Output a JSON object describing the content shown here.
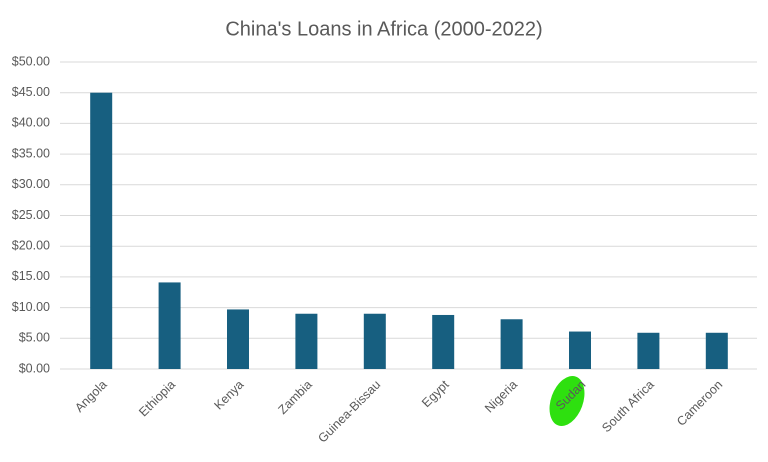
{
  "chart_data": {
    "type": "bar",
    "title": "China's Loans in Africa (2000-2022)",
    "categories": [
      "Angola",
      "Ethiopia",
      "Kenya",
      "Zambia",
      "Guinea-Bissau",
      "Egypt",
      "Nigeria",
      "Sudan",
      "South Africa",
      "Cameroon"
    ],
    "values": [
      45.0,
      14.1,
      9.7,
      9.0,
      9.0,
      8.8,
      8.1,
      6.1,
      5.9,
      5.9
    ],
    "color": "#175f80",
    "ylim": [
      0,
      50
    ],
    "yticks": [
      {
        "value": 0,
        "label": "$0.00"
      },
      {
        "value": 5,
        "label": "$5.00"
      },
      {
        "value": 10,
        "label": "$10.00"
      },
      {
        "value": 15,
        "label": "$15.00"
      },
      {
        "value": 20,
        "label": "$20.00"
      },
      {
        "value": 25,
        "label": "$25.00"
      },
      {
        "value": 30,
        "label": "$30.00"
      },
      {
        "value": 35,
        "label": "$35.00"
      },
      {
        "value": 40,
        "label": "$40.00"
      },
      {
        "value": 45,
        "label": "$45.00"
      },
      {
        "value": 50,
        "label": "$50.00"
      }
    ],
    "grid": true
  }
}
